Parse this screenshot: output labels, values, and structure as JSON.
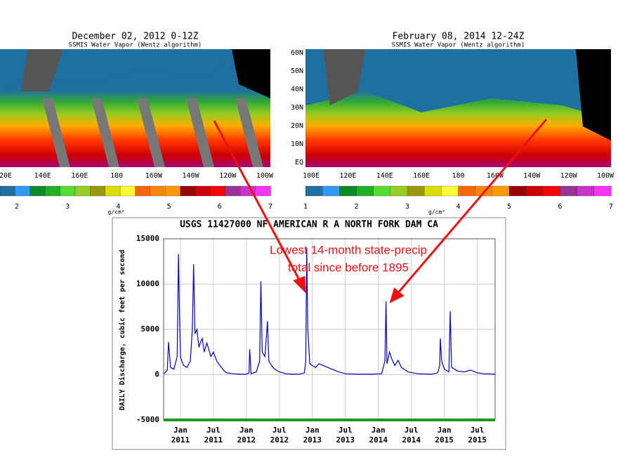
{
  "maps": [
    {
      "title": "December 02, 2012 0-12Z",
      "subtitle": "SSMIS Water Vapor (Wentz algorithm)",
      "lon_labels": [
        "20E",
        "140E",
        "160E",
        "180",
        "160W",
        "140W",
        "120W",
        "100W"
      ],
      "lat_labels": [],
      "colorbar_labels": [
        "2",
        "3",
        "4",
        "5",
        "6",
        "7"
      ],
      "colorbar_unit": "g/cm²"
    },
    {
      "title": "February 08, 2014  12-24Z",
      "subtitle": "SSMIS Water Vapor (Wentz algorithm)",
      "lon_labels": [
        "100E",
        "120E",
        "140E",
        "160E",
        "180",
        "160W",
        "140W",
        "120W",
        "100W"
      ],
      "lat_labels": [
        "60N",
        "50N",
        "40N",
        "30N",
        "20N",
        "10N",
        "EQ"
      ],
      "colorbar_labels": [
        "1",
        "2",
        "3",
        "4",
        "5",
        "6",
        "7"
      ],
      "colorbar_unit": "g/cm²"
    }
  ],
  "colorbar_colors": [
    "#1f6fa0",
    "#3399ff",
    "#0a8a2a",
    "#22b022",
    "#55dd33",
    "#99cc22",
    "#999900",
    "#dddd00",
    "#ffff33",
    "#ff6600",
    "#ff8800",
    "#ff9900",
    "#990000",
    "#cc0000",
    "#ff0000",
    "#993399",
    "#cc33cc",
    "#ff33ff"
  ],
  "chart_data": {
    "type": "line",
    "title": "USGS 11427000 NF AMERICAN R A NORTH FORK DAM CA",
    "ylabel": "DAILY Discharge, cubic feet per second",
    "annotation": [
      "Lowest 14-month state-precip",
      "total since before 1895"
    ],
    "color": "#0000cc",
    "x": [
      2010.75,
      2010.8,
      2010.82,
      2010.85,
      2010.9,
      2010.95,
      2010.97,
      2010.99,
      2011.0,
      2011.02,
      2011.05,
      2011.1,
      2011.15,
      2011.18,
      2011.2,
      2011.22,
      2011.25,
      2011.28,
      2011.3,
      2011.33,
      2011.36,
      2011.4,
      2011.43,
      2011.46,
      2011.5,
      2011.55,
      2011.6,
      2011.65,
      2011.7,
      2011.8,
      2011.9,
      2012.0,
      2012.04,
      2012.05,
      2012.07,
      2012.15,
      2012.2,
      2012.22,
      2012.24,
      2012.28,
      2012.32,
      2012.34,
      2012.4,
      2012.45,
      2012.5,
      2012.6,
      2012.7,
      2012.8,
      2012.88,
      2012.9,
      2012.915,
      2012.93,
      2012.96,
      2013.0,
      2013.05,
      2013.1,
      2013.2,
      2013.3,
      2013.4,
      2013.5,
      2013.7,
      2013.9,
      2014.05,
      2014.1,
      2014.117,
      2014.13,
      2014.17,
      2014.2,
      2014.25,
      2014.3,
      2014.35,
      2014.45,
      2014.6,
      2014.8,
      2014.9,
      2014.93,
      2014.94,
      2014.96,
      2015.0,
      2015.07,
      2015.09,
      2015.11,
      2015.2,
      2015.3,
      2015.4,
      2015.5,
      2015.6,
      2015.77
    ],
    "values": [
      100,
      500,
      3600,
      800,
      600,
      2000,
      13300,
      5300,
      2000,
      1500,
      1000,
      800,
      1500,
      5000,
      12200,
      4500,
      5000,
      3000,
      3500,
      4000,
      2500,
      3500,
      2800,
      2000,
      2500,
      1500,
      1000,
      500,
      200,
      100,
      50,
      50,
      200,
      2800,
      100,
      300,
      1500,
      10300,
      2500,
      2000,
      5900,
      1500,
      800,
      500,
      300,
      100,
      50,
      50,
      200,
      1500,
      14000,
      5200,
      1200,
      1000,
      800,
      1200,
      900,
      600,
      300,
      100,
      50,
      50,
      100,
      1500,
      8100,
      1200,
      2500,
      1800,
      1000,
      1600,
      800,
      300,
      100,
      50,
      200,
      1000,
      4000,
      1500,
      600,
      300,
      7000,
      800,
      400,
      300,
      500,
      200,
      100,
      50
    ],
    "xlim": [
      2010.745,
      2015.77
    ],
    "xticks": [
      {
        "value": 2011.0,
        "label": "Jan",
        "year": "2011"
      },
      {
        "value": 2011.5,
        "label": "Jul",
        "year": "2011"
      },
      {
        "value": 2012.0,
        "label": "Jan",
        "year": "2012"
      },
      {
        "value": 2012.5,
        "label": "Jul",
        "year": "2012"
      },
      {
        "value": 2013.0,
        "label": "Jan",
        "year": "2013"
      },
      {
        "value": 2013.5,
        "label": "Jul",
        "year": "2013"
      },
      {
        "value": 2014.0,
        "label": "Jan",
        "year": "2014"
      },
      {
        "value": 2014.5,
        "label": "Jul",
        "year": "2014"
      },
      {
        "value": 2015.0,
        "label": "Jan",
        "year": "2015"
      },
      {
        "value": 2015.5,
        "label": "Jul",
        "year": "2015"
      }
    ],
    "ylim": [
      -5000,
      15000
    ],
    "yticks": [
      -5000,
      0,
      5000,
      10000,
      15000
    ],
    "grid": true
  }
}
